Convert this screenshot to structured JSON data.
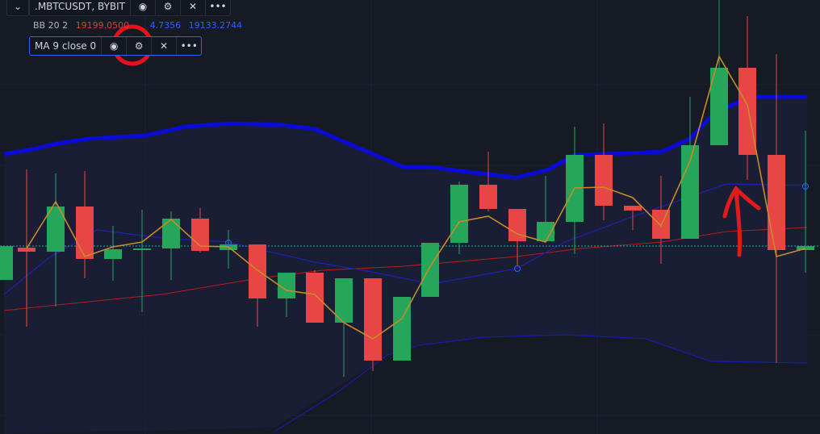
{
  "toolbar": {
    "symbol": ".MBTCUSDT, BYBIT"
  },
  "legend": {
    "bb_label": "BB 20 2",
    "bb_basis": "19199.0500",
    "bb_upper": "4.7356",
    "bb_lower": "19133.2744"
  },
  "ma": {
    "label": "MA 9 close 0"
  }
}
